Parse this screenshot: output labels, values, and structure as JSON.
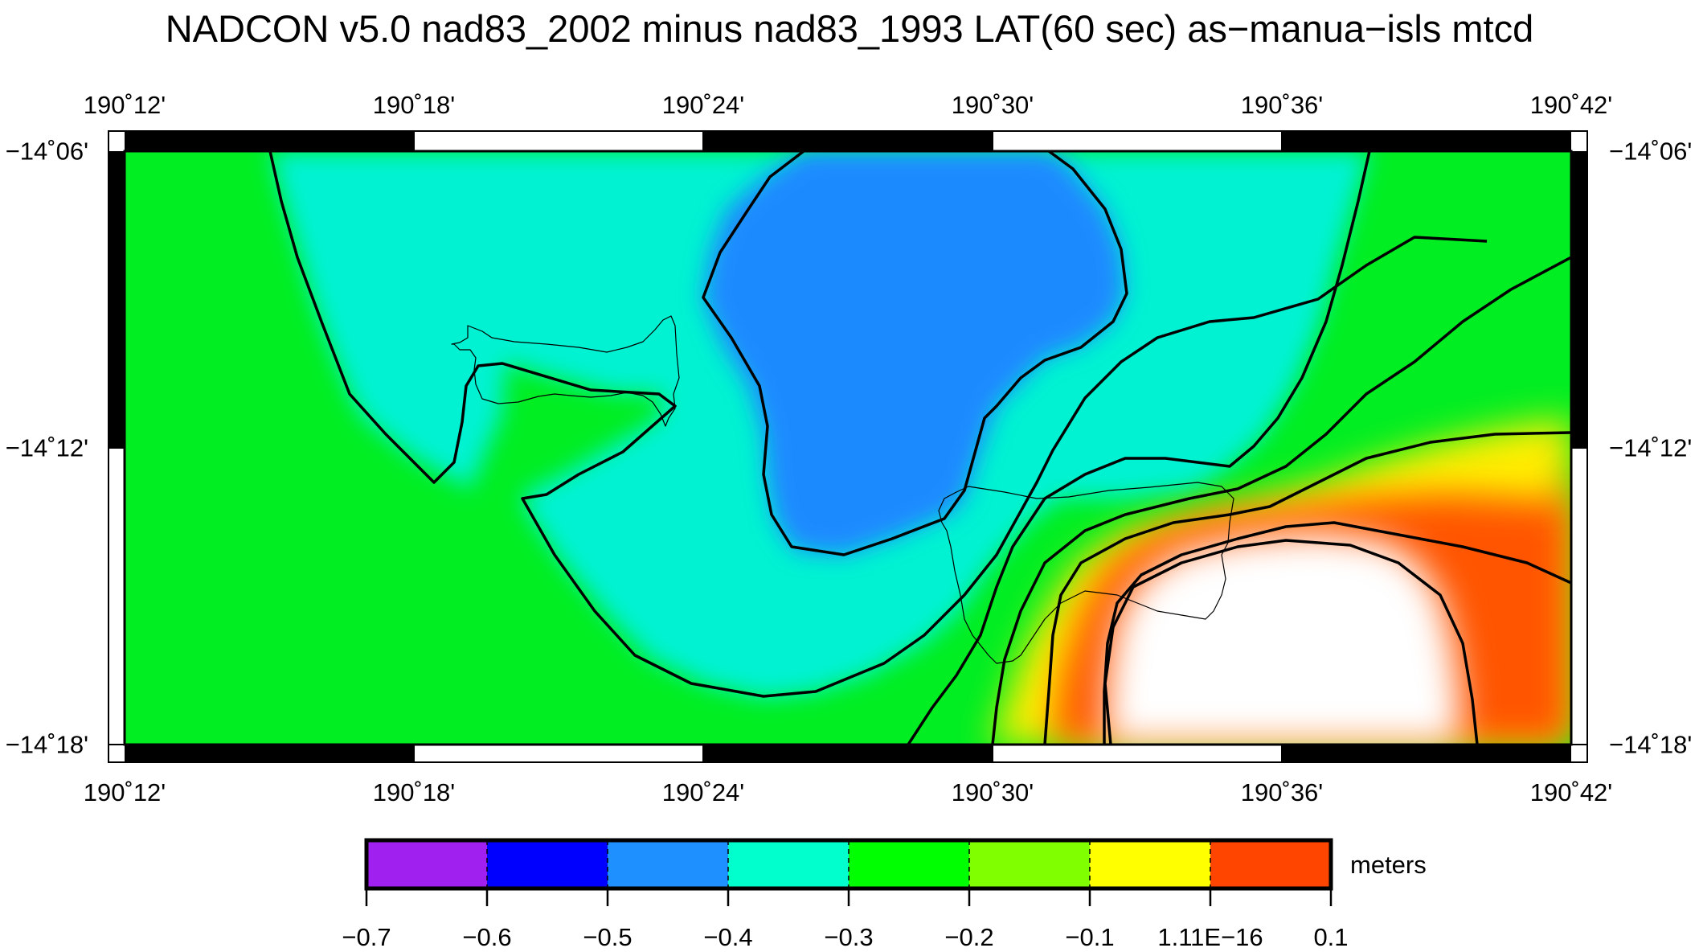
{
  "title": "NADCON v5.0 nad83_2002 minus nad83_1993 LAT(60 sec) as−manua−isls mtcd",
  "x_ticks_top": [
    "190˚12'",
    "190˚18'",
    "190˚24'",
    "190˚30'",
    "190˚36'",
    "190˚42'"
  ],
  "x_ticks_bottom": [
    "190˚12'",
    "190˚18'",
    "190˚24'",
    "190˚30'",
    "190˚36'",
    "190˚42'"
  ],
  "y_ticks_left": [
    "−14˚06'",
    "−14˚12'",
    "−14˚18'"
  ],
  "y_ticks_right": [
    "−14˚06'",
    "−14˚12'",
    "−14˚18'"
  ],
  "colorbar": {
    "unit": "meters",
    "labels": [
      "−0.7",
      "−0.6",
      "−0.5",
      "−0.4",
      "−0.3",
      "−0.2",
      "−0.1",
      "1.11E−16",
      "0.1"
    ],
    "colors": [
      "#a020f0",
      "#0000ff",
      "#1e90ff",
      "#00ffcc",
      "#00ff00",
      "#7fff00",
      "#ffff00",
      "#ff4500"
    ]
  },
  "colors": {
    "field_green": "#00ee22",
    "field_cyan": "#00f2d2",
    "field_blue": "#1a8aff",
    "field_yellow": "#ffee00",
    "field_orange": "#ff5500",
    "field_white": "#ffffff"
  }
}
